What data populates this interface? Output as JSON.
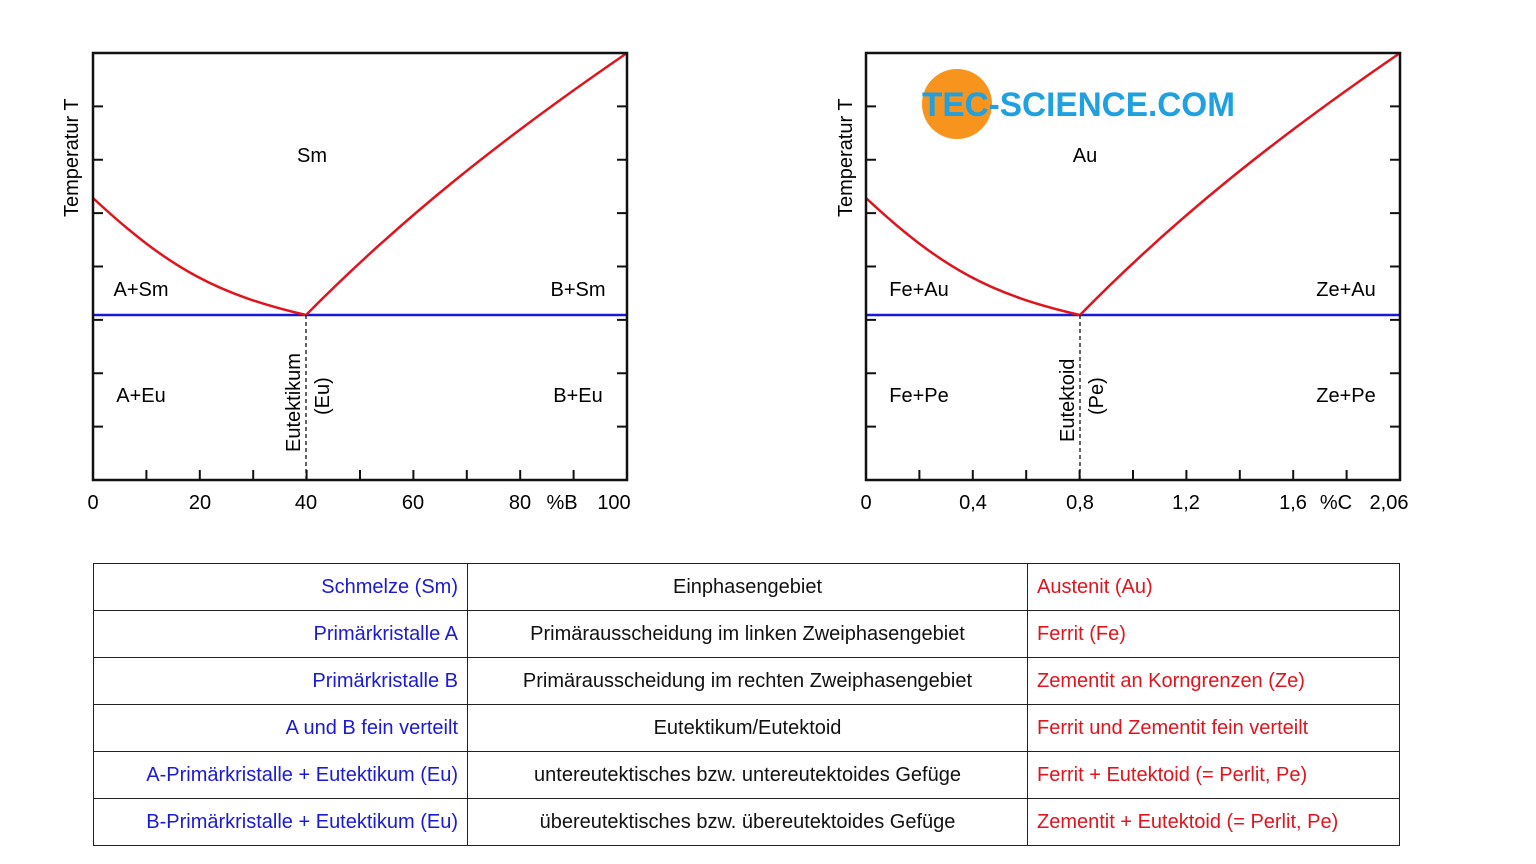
{
  "chart_data": [
    {
      "type": "line",
      "ylabel": "Temperatur T",
      "xlabel": "%B",
      "x_ticks": [
        "0",
        "20",
        "40",
        "60",
        "80",
        "100"
      ],
      "xlim": [
        0,
        100
      ],
      "eutectic_x": 40,
      "regions": {
        "top": "Sm",
        "mid_left": "A+Sm",
        "mid_right": "B+Sm",
        "low_left": "A+Eu",
        "low_right": "B+Eu"
      },
      "vertical_label_1": "Eutektikum",
      "vertical_label_2": "(Eu)",
      "colors": {
        "liquidus": "#e0141e",
        "eutectic_line": "#1a1ad6"
      }
    },
    {
      "type": "line",
      "ylabel": "Temperatur T",
      "xlabel": "%C",
      "x_ticks": [
        "0",
        "0,4",
        "0,8",
        "1,2",
        "1,6",
        "2,06"
      ],
      "xlim": [
        0,
        2.06
      ],
      "eutectic_x": 0.8,
      "regions": {
        "top": "Au",
        "mid_left": "Fe+Au",
        "mid_right": "Ze+Au",
        "low_left": "Fe+Pe",
        "low_right": "Ze+Pe"
      },
      "vertical_label_1": "Eutektoid",
      "vertical_label_2": "(Pe)",
      "colors": {
        "liquidus": "#e0141e",
        "eutectic_line": "#1a1ad6"
      }
    }
  ],
  "logo": {
    "text": "TEC-SCIENCE.COM",
    "circle_color": "#f7941d",
    "text_color": "#1fa0e0"
  },
  "table": {
    "rows": [
      {
        "left": "Schmelze (Sm)",
        "middle": "Einphasengebiet",
        "right": "Austenit (Au)"
      },
      {
        "left": "Primärkristalle A",
        "middle": "Primärausscheidung im linken Zweiphasengebiet",
        "right": "Ferrit (Fe)"
      },
      {
        "left": "Primärkristalle B",
        "middle": "Primärausscheidung im rechten Zweiphasengebiet",
        "right": "Zementit an Korngrenzen (Ze)"
      },
      {
        "left": "A und B fein verteilt",
        "middle": "Eutektikum/Eutektoid",
        "right": "Ferrit und Zementit fein verteilt"
      },
      {
        "left": "A-Primärkristalle + Eutektikum (Eu)",
        "middle": "untereutektisches bzw. untereutektoides Gefüge",
        "right": "Ferrit + Eutektoid (= Perlit, Pe)"
      },
      {
        "left": "B-Primärkristalle + Eutektikum (Eu)",
        "middle": "übereutektisches bzw. übereutektoides Gefüge",
        "right": "Zementit + Eutektoid (= Perlit, Pe)"
      }
    ]
  }
}
